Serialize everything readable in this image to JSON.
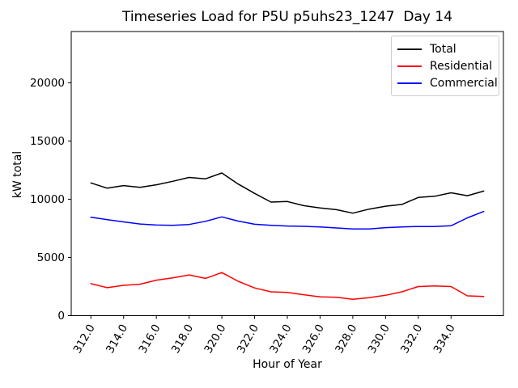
{
  "figure": {
    "background": "#ffffff"
  },
  "chart_data": {
    "type": "line",
    "title": "Timeseries Load for P5U p5uhs23_1247  Day 14",
    "xlabel": "Hour of Year",
    "ylabel": "kW total",
    "x": [
      312,
      313,
      314,
      315,
      316,
      317,
      318,
      319,
      320,
      321,
      322,
      323,
      324,
      325,
      326,
      327,
      328,
      329,
      330,
      331,
      332,
      333,
      334,
      335,
      336
    ],
    "series": [
      {
        "name": "Total",
        "color": "#000000",
        "values": [
          11400,
          10950,
          11170,
          11020,
          11240,
          11540,
          11870,
          11750,
          12250,
          11300,
          10500,
          9750,
          9800,
          9450,
          9250,
          9100,
          8800,
          9150,
          9400,
          9550,
          10150,
          10250,
          10550,
          10300,
          10700
        ]
      },
      {
        "name": "Residential",
        "color": "#ff0000",
        "values": [
          2750,
          2400,
          2600,
          2700,
          3050,
          3250,
          3500,
          3200,
          3700,
          2950,
          2380,
          2050,
          2000,
          1800,
          1620,
          1580,
          1400,
          1550,
          1750,
          2050,
          2500,
          2550,
          2500,
          1700,
          1650
        ]
      },
      {
        "name": "Commercial",
        "color": "#0000ff",
        "values": [
          8450,
          8250,
          8050,
          7870,
          7780,
          7760,
          7830,
          8100,
          8480,
          8120,
          7850,
          7760,
          7700,
          7670,
          7620,
          7530,
          7440,
          7450,
          7560,
          7620,
          7660,
          7660,
          7720,
          8400,
          8950
        ]
      }
    ],
    "xlim": [
      310.8,
      337.2
    ],
    "ylim": [
      0,
      24400
    ],
    "xticks": [
      312,
      314,
      316,
      318,
      320,
      322,
      324,
      326,
      328,
      330,
      332,
      334
    ],
    "xtick_labels": [
      "312.0",
      "314.0",
      "316.0",
      "318.0",
      "320.0",
      "322.0",
      "324.0",
      "326.0",
      "328.0",
      "330.0",
      "332.0",
      "334.0"
    ],
    "yticks": [
      0,
      5000,
      10000,
      15000,
      20000
    ],
    "ytick_labels": [
      "0",
      "5000",
      "10000",
      "15000",
      "20000"
    ],
    "xtick_rotation_deg": 60,
    "grid": false,
    "legend_position": "upper right"
  }
}
